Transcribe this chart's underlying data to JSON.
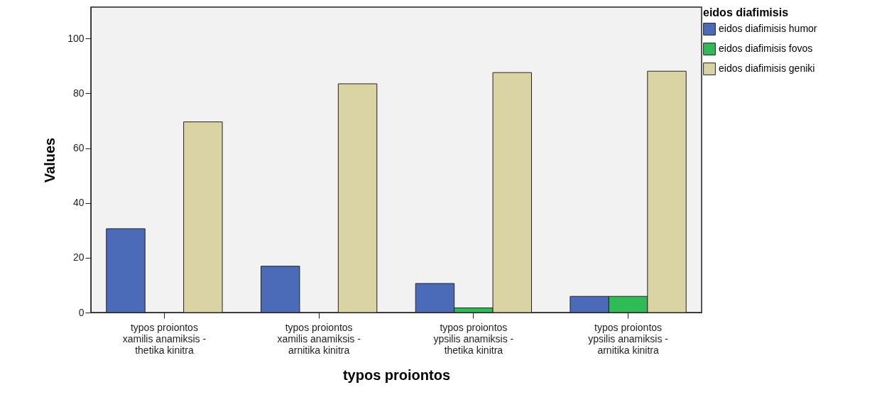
{
  "chart_data": {
    "type": "bar",
    "xlabel": "typos proiontos",
    "ylabel": "Values",
    "legend_title": "eidos diafimisis",
    "categories": [
      "typos proiontos xamilis anamiksis - thetika kinitra",
      "typos proiontos xamilis anamiksis - arnitika kinitra",
      "typos proiontos ypsilis anamiksis - thetika kinitra",
      "typos proiontos ypsilis anamiksis - arnitika kinitra"
    ],
    "series": [
      {
        "name": "eidos diafimisis humor",
        "color": "#4b6bb8",
        "values": [
          30.6,
          16.9,
          10.6,
          5.9
        ]
      },
      {
        "name": "eidos diafimisis fovos",
        "color": "#2fbb55",
        "values": [
          null,
          null,
          1.7,
          5.9
        ]
      },
      {
        "name": "eidos diafimisis geniki",
        "color": "#dad3a3",
        "values": [
          69.6,
          83.5,
          87.6,
          88.1
        ]
      }
    ],
    "ylim": [
      0,
      111.5
    ],
    "yticks": [
      0,
      20,
      40,
      60,
      80,
      100
    ],
    "grid": false,
    "legend": "top right"
  }
}
